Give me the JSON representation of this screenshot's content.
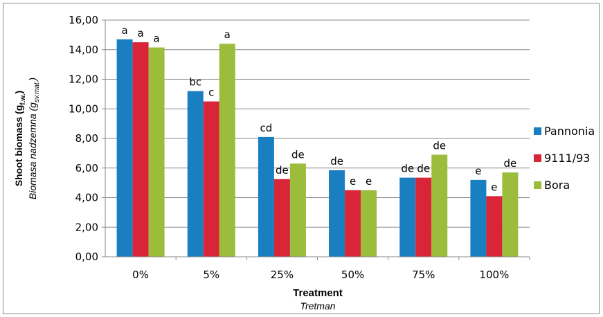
{
  "chart_data": {
    "type": "bar",
    "categories": [
      "0%",
      "5%",
      "25%",
      "50%",
      "75%",
      "100%"
    ],
    "series": [
      {
        "name": "Pannonia",
        "color": "#1a7fc1",
        "values": [
          14.7,
          11.2,
          8.1,
          5.85,
          5.35,
          5.2
        ],
        "labels": [
          "a",
          "bc",
          "cd",
          "de",
          "de",
          "e"
        ]
      },
      {
        "name": "9111/93",
        "color": "#d92538",
        "values": [
          14.5,
          10.5,
          5.25,
          4.5,
          5.35,
          4.1
        ],
        "labels": [
          "a",
          "c",
          "de",
          "e",
          "de",
          "e"
        ]
      },
      {
        "name": "Bora",
        "color": "#9cbd3b",
        "values": [
          14.15,
          14.4,
          6.3,
          4.5,
          6.9,
          5.7
        ],
        "labels": [
          "a",
          "a",
          "de",
          "e",
          "de",
          "de"
        ]
      }
    ],
    "ylim": [
      0,
      16
    ],
    "yticks": [
      "0,00",
      "2,00",
      "4,00",
      "6,00",
      "8,00",
      "10,00",
      "12,00",
      "14,00",
      "16,00"
    ],
    "grid": true,
    "legend_position": "right",
    "ylabel": {
      "main": "Shoot biomass (g",
      "main_sub": "f.w.",
      "main_end": ")",
      "secondary": "Biomasa nadzemna (g",
      "secondary_sub": "sv.mat.",
      "secondary_end": ")"
    },
    "xlabel": {
      "main": "Treatment",
      "secondary": "Tretman"
    }
  }
}
